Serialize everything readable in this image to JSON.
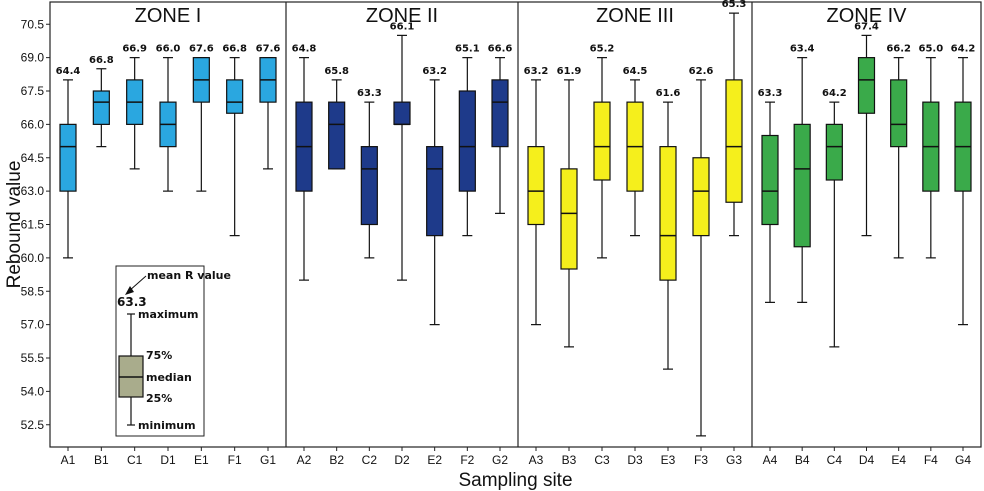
{
  "chart_data": {
    "type": "boxplot",
    "xlabel": "Sampling site",
    "ylabel": "Rebound value",
    "ylim": [
      51.5,
      71.5
    ],
    "yticks": [
      "52.5",
      "54.0",
      "55.5",
      "57.0",
      "58.5",
      "60.0",
      "61.5",
      "63.0",
      "64.5",
      "66.0",
      "67.5",
      "69.0",
      "70.5"
    ],
    "zones": [
      {
        "title": "ZONE I",
        "color": "#2aa7e0",
        "sites": [
          {
            "label": "A1",
            "min": 60.0,
            "q1": 63.0,
            "median": 65.0,
            "q3": 66.0,
            "max": 68.0,
            "mean_label": "64.4"
          },
          {
            "label": "B1",
            "min": 65.0,
            "q1": 66.0,
            "median": 67.0,
            "q3": 67.5,
            "max": 68.5,
            "mean_label": "66.8"
          },
          {
            "label": "C1",
            "min": 64.0,
            "q1": 66.0,
            "median": 67.0,
            "q3": 68.0,
            "max": 69.0,
            "mean_label": "66.9"
          },
          {
            "label": "D1",
            "min": 63.0,
            "q1": 65.0,
            "median": 66.0,
            "q3": 67.0,
            "max": 69.0,
            "mean_label": "66.0"
          },
          {
            "label": "E1",
            "min": 63.0,
            "q1": 67.0,
            "median": 68.0,
            "q3": 69.0,
            "max": 69.0,
            "mean_label": "67.6"
          },
          {
            "label": "F1",
            "min": 61.0,
            "q1": 66.5,
            "median": 67.0,
            "q3": 68.0,
            "max": 69.0,
            "mean_label": "66.8"
          },
          {
            "label": "G1",
            "min": 64.0,
            "q1": 67.0,
            "median": 68.0,
            "q3": 69.0,
            "max": 69.0,
            "mean_label": "67.6"
          }
        ]
      },
      {
        "title": "ZONE II",
        "color": "#1e3a8a",
        "sites": [
          {
            "label": "A2",
            "min": 59.0,
            "q1": 63.0,
            "median": 65.0,
            "q3": 67.0,
            "max": 69.0,
            "mean_label": "64.8"
          },
          {
            "label": "B2",
            "min": 64.0,
            "q1": 64.0,
            "median": 66.0,
            "q3": 67.0,
            "max": 68.0,
            "mean_label": "65.8"
          },
          {
            "label": "C2",
            "min": 60.0,
            "q1": 61.5,
            "median": 64.0,
            "q3": 65.0,
            "max": 67.0,
            "mean_label": "63.3"
          },
          {
            "label": "D2",
            "min": 59.0,
            "q1": 66.0,
            "median": 66.0,
            "q3": 67.0,
            "max": 70.0,
            "mean_label": "66.1"
          },
          {
            "label": "E2",
            "min": 57.0,
            "q1": 61.0,
            "median": 64.0,
            "q3": 65.0,
            "max": 68.0,
            "mean_label": "63.2"
          },
          {
            "label": "F2",
            "min": 61.0,
            "q1": 63.0,
            "median": 65.0,
            "q3": 67.5,
            "max": 69.0,
            "mean_label": "65.1"
          },
          {
            "label": "G2",
            "min": 62.0,
            "q1": 65.0,
            "median": 67.0,
            "q3": 68.0,
            "max": 69.0,
            "mean_label": "66.6"
          }
        ]
      },
      {
        "title": "ZONE III",
        "color": "#f5ef1c",
        "sites": [
          {
            "label": "A3",
            "min": 57.0,
            "q1": 61.5,
            "median": 63.0,
            "q3": 65.0,
            "max": 68.0,
            "mean_label": "63.2"
          },
          {
            "label": "B3",
            "min": 56.0,
            "q1": 59.5,
            "median": 62.0,
            "q3": 64.0,
            "max": 68.0,
            "mean_label": "61.9"
          },
          {
            "label": "C3",
            "min": 60.0,
            "q1": 63.5,
            "median": 65.0,
            "q3": 67.0,
            "max": 69.0,
            "mean_label": "65.2"
          },
          {
            "label": "D3",
            "min": 61.0,
            "q1": 63.0,
            "median": 65.0,
            "q3": 67.0,
            "max": 68.0,
            "mean_label": "64.5"
          },
          {
            "label": "E3",
            "min": 55.0,
            "q1": 59.0,
            "median": 61.0,
            "q3": 65.0,
            "max": 67.0,
            "mean_label": "61.6"
          },
          {
            "label": "F3",
            "min": 52.0,
            "q1": 61.0,
            "median": 63.0,
            "q3": 64.5,
            "max": 68.0,
            "mean_label": "62.6"
          },
          {
            "label": "G3",
            "min": 61.0,
            "q1": 62.5,
            "median": 65.0,
            "q3": 68.0,
            "max": 71.0,
            "mean_label": "65.3"
          }
        ]
      },
      {
        "title": "ZONE IV",
        "color": "#3aaa4a",
        "sites": [
          {
            "label": "A4",
            "min": 58.0,
            "q1": 61.5,
            "median": 63.0,
            "q3": 65.5,
            "max": 67.0,
            "mean_label": "63.3"
          },
          {
            "label": "B4",
            "min": 58.0,
            "q1": 60.5,
            "median": 64.0,
            "q3": 66.0,
            "max": 69.0,
            "mean_label": "63.4"
          },
          {
            "label": "C4",
            "min": 56.0,
            "q1": 63.5,
            "median": 65.0,
            "q3": 66.0,
            "max": 67.0,
            "mean_label": "64.2"
          },
          {
            "label": "D4",
            "min": 61.0,
            "q1": 66.5,
            "median": 68.0,
            "q3": 69.0,
            "max": 70.0,
            "mean_label": "67.4"
          },
          {
            "label": "E4",
            "min": 60.0,
            "q1": 65.0,
            "median": 66.0,
            "q3": 68.0,
            "max": 69.0,
            "mean_label": "66.2"
          },
          {
            "label": "F4",
            "min": 60.0,
            "q1": 63.0,
            "median": 65.0,
            "q3": 67.0,
            "max": 69.0,
            "mean_label": "65.0"
          },
          {
            "label": "G4",
            "min": 57.0,
            "q1": 63.0,
            "median": 65.0,
            "q3": 67.0,
            "max": 69.0,
            "mean_label": "64.2"
          }
        ]
      }
    ],
    "legend": {
      "color": "#a9ac8c",
      "mean_caption": "mean R value",
      "mean_example": "63.3",
      "maximum": "maximum",
      "q3": "75%",
      "median": "median",
      "q1": "25%",
      "minimum": "minimum"
    }
  }
}
